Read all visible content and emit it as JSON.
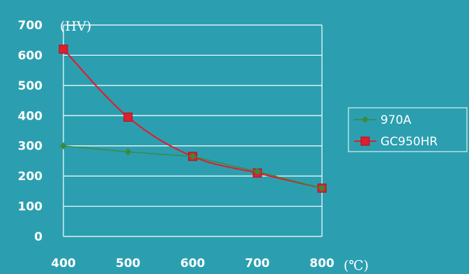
{
  "colors": {
    "background": "#2b9fb0",
    "grid": "#ffffff",
    "text": "#ffffff"
  },
  "chart_data": {
    "type": "line",
    "x_unit_label": "(℃)",
    "y_unit_label": "(HV)",
    "x": [
      400,
      500,
      600,
      700,
      800
    ],
    "xlim": [
      400,
      800
    ],
    "ylim": [
      0,
      700
    ],
    "x_ticks": [
      400,
      500,
      600,
      700,
      800
    ],
    "y_ticks": [
      0,
      100,
      200,
      300,
      400,
      500,
      600,
      700
    ],
    "grid": true,
    "legend_position": "right",
    "series": [
      {
        "name": "970A",
        "values": [
          300,
          280,
          265,
          215,
          160
        ],
        "color": "#3a8a3a",
        "marker": "diamond",
        "smooth": false
      },
      {
        "name": "GC950HR",
        "values": [
          620,
          395,
          265,
          210,
          160
        ],
        "color": "#e01e2e",
        "marker": "square",
        "smooth": true
      }
    ]
  }
}
